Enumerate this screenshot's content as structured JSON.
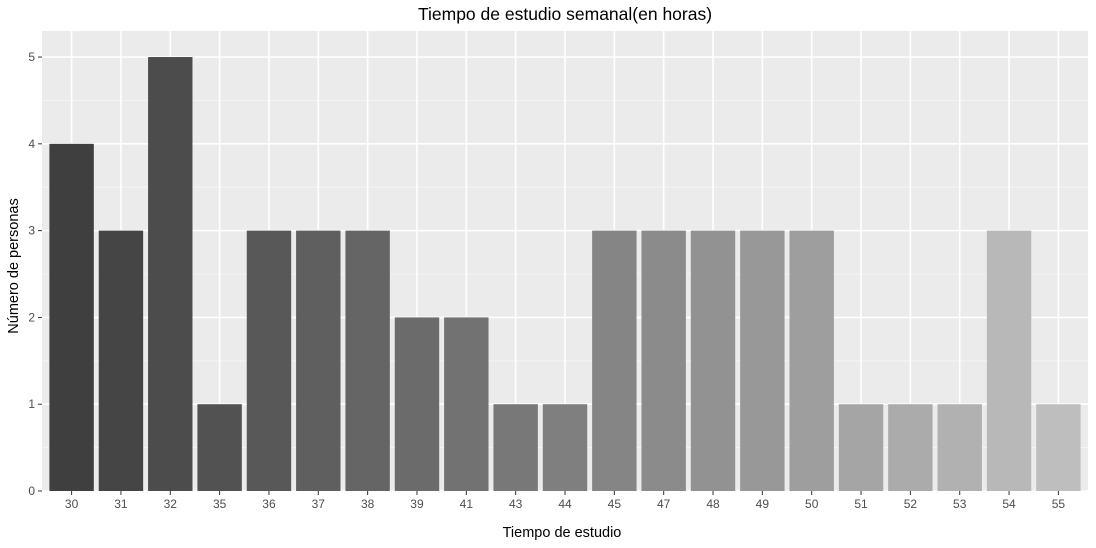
{
  "chart_data": {
    "type": "bar",
    "title": "Tiempo de estudio semanal(en horas)",
    "xlabel": "Tiempo de estudio",
    "ylabel": "Número de personas",
    "categories": [
      "30",
      "31",
      "32",
      "35",
      "36",
      "37",
      "38",
      "39",
      "41",
      "43",
      "44",
      "45",
      "47",
      "48",
      "49",
      "50",
      "51",
      "52",
      "53",
      "54",
      "55"
    ],
    "values": [
      4,
      3,
      5,
      1,
      3,
      3,
      3,
      2,
      2,
      1,
      1,
      3,
      3,
      3,
      3,
      3,
      1,
      1,
      1,
      3,
      1
    ],
    "ylim": [
      0,
      5.3
    ],
    "yticks": [
      0,
      1,
      2,
      3,
      4,
      5
    ],
    "grid": true,
    "legend": "none",
    "colors": {
      "panel_background": "#ebebeb",
      "grid_major": "#ffffff",
      "bar_start": "#3f3f3f",
      "bar_end": "#bebebe"
    }
  }
}
